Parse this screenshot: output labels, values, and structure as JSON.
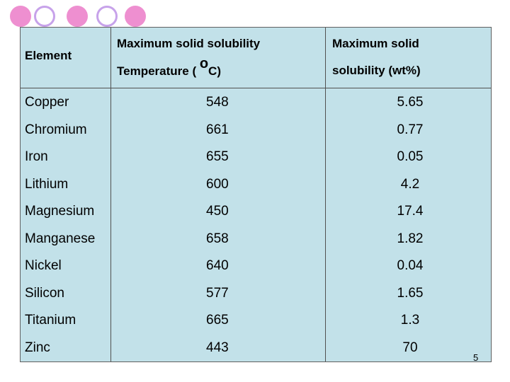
{
  "table": {
    "headers": {
      "element": "Element",
      "temp_line1": "Maximum solid solubility",
      "temp_line2": "Temperature ( ",
      "temp_degree": "o",
      "temp_unit": "C)",
      "sol_line1": "Maximum solid",
      "sol_line2": "solubility (wt%)"
    },
    "rows": [
      {
        "element": "Copper",
        "temperature": "548",
        "solubility": "5.65"
      },
      {
        "element": "Chromium",
        "temperature": "661",
        "solubility": "0.77"
      },
      {
        "element": "Iron",
        "temperature": "655",
        "solubility": "0.05"
      },
      {
        "element": "Lithium",
        "temperature": "600",
        "solubility": "4.2"
      },
      {
        "element": "Magnesium",
        "temperature": "450",
        "solubility": "17.4"
      },
      {
        "element": "Manganese",
        "temperature": "658",
        "solubility": "1.82"
      },
      {
        "element": "Nickel",
        "temperature": "640",
        "solubility": "0.04"
      },
      {
        "element": "Silicon",
        "temperature": "577",
        "solubility": "1.65"
      },
      {
        "element": "Titanium",
        "temperature": "665",
        "solubility": "1.3"
      },
      {
        "element": "Zinc",
        "temperature": "443",
        "solubility": "70"
      }
    ]
  },
  "footer": {
    "page_number": "5"
  },
  "colors": {
    "table_background": "#c2e1e9",
    "decor_pink": "#ee8fd0",
    "decor_lavender": "#c7a2ea"
  }
}
